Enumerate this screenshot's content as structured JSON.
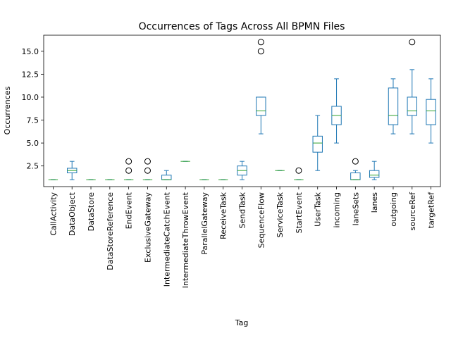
{
  "chart_data": {
    "type": "boxplot",
    "title": "Occurrences of Tags Across All BPMN Files",
    "xlabel": "Tag",
    "ylabel": "Occurrences",
    "ylim": [
      0.25,
      16.75
    ],
    "yticks": [
      2.5,
      5.0,
      7.5,
      10.0,
      12.5,
      15.0
    ],
    "ytick_labels": [
      "2.5",
      "5.0",
      "7.5",
      "10.0",
      "12.5",
      "15.0"
    ],
    "grid": false,
    "legend": "none",
    "colors": {
      "box": "#1f77b4",
      "median": "#2ca02c",
      "flier": "#000000"
    },
    "categories": [
      "CallActivity",
      "DataObject",
      "DataStore",
      "DataStoreReference",
      "EndEvent",
      "ExclusiveGateway",
      "IntermediateCatchEvent",
      "IntermediateThrowEvent",
      "ParallelGateway",
      "ReceiveTask",
      "SendTask",
      "SequenceFlow",
      "ServiceTask",
      "StartEvent",
      "UserTask",
      "incoming",
      "laneSets",
      "lanes",
      "outgoing",
      "sourceRef",
      "targetRef"
    ],
    "boxes": [
      {
        "whislo": 1,
        "q1": 1,
        "med": 1,
        "q3": 1,
        "whishi": 1,
        "fliers": []
      },
      {
        "whislo": 1,
        "q1": 1.75,
        "med": 2,
        "q3": 2.25,
        "whishi": 3,
        "fliers": []
      },
      {
        "whislo": 1,
        "q1": 1,
        "med": 1,
        "q3": 1,
        "whishi": 1,
        "fliers": []
      },
      {
        "whislo": 1,
        "q1": 1,
        "med": 1,
        "q3": 1,
        "whishi": 1,
        "fliers": []
      },
      {
        "whislo": 1,
        "q1": 1,
        "med": 1,
        "q3": 1,
        "whishi": 1,
        "fliers": [
          2,
          3
        ]
      },
      {
        "whislo": 1,
        "q1": 1,
        "med": 1,
        "q3": 1,
        "whishi": 1,
        "fliers": [
          2,
          3
        ]
      },
      {
        "whislo": 1,
        "q1": 1,
        "med": 1,
        "q3": 1.5,
        "whishi": 2,
        "fliers": []
      },
      {
        "whislo": 3,
        "q1": 3,
        "med": 3,
        "q3": 3,
        "whishi": 3,
        "fliers": []
      },
      {
        "whislo": 1,
        "q1": 1,
        "med": 1,
        "q3": 1,
        "whishi": 1,
        "fliers": []
      },
      {
        "whislo": 1,
        "q1": 1,
        "med": 1,
        "q3": 1,
        "whishi": 1,
        "fliers": []
      },
      {
        "whislo": 1,
        "q1": 1.5,
        "med": 2,
        "q3": 2.5,
        "whishi": 3,
        "fliers": []
      },
      {
        "whislo": 6,
        "q1": 8,
        "med": 8.5,
        "q3": 10,
        "whishi": 10,
        "fliers": [
          15,
          16
        ]
      },
      {
        "whislo": 2,
        "q1": 2,
        "med": 2,
        "q3": 2,
        "whishi": 2,
        "fliers": []
      },
      {
        "whislo": 1,
        "q1": 1,
        "med": 1,
        "q3": 1,
        "whishi": 1,
        "fliers": [
          2
        ]
      },
      {
        "whislo": 2,
        "q1": 4,
        "med": 5,
        "q3": 5.75,
        "whishi": 8,
        "fliers": []
      },
      {
        "whislo": 5,
        "q1": 7,
        "med": 8,
        "q3": 9,
        "whishi": 12,
        "fliers": []
      },
      {
        "whislo": 1,
        "q1": 1,
        "med": 1,
        "q3": 1.75,
        "whishi": 2,
        "fliers": [
          3
        ]
      },
      {
        "whislo": 1,
        "q1": 1.25,
        "med": 1.5,
        "q3": 2,
        "whishi": 3,
        "fliers": []
      },
      {
        "whislo": 6,
        "q1": 7,
        "med": 8,
        "q3": 11,
        "whishi": 12,
        "fliers": []
      },
      {
        "whislo": 6,
        "q1": 8,
        "med": 8.5,
        "q3": 10,
        "whishi": 13,
        "fliers": [
          16
        ]
      },
      {
        "whislo": 5,
        "q1": 7,
        "med": 8.5,
        "q3": 9.75,
        "whishi": 12,
        "fliers": []
      }
    ]
  }
}
